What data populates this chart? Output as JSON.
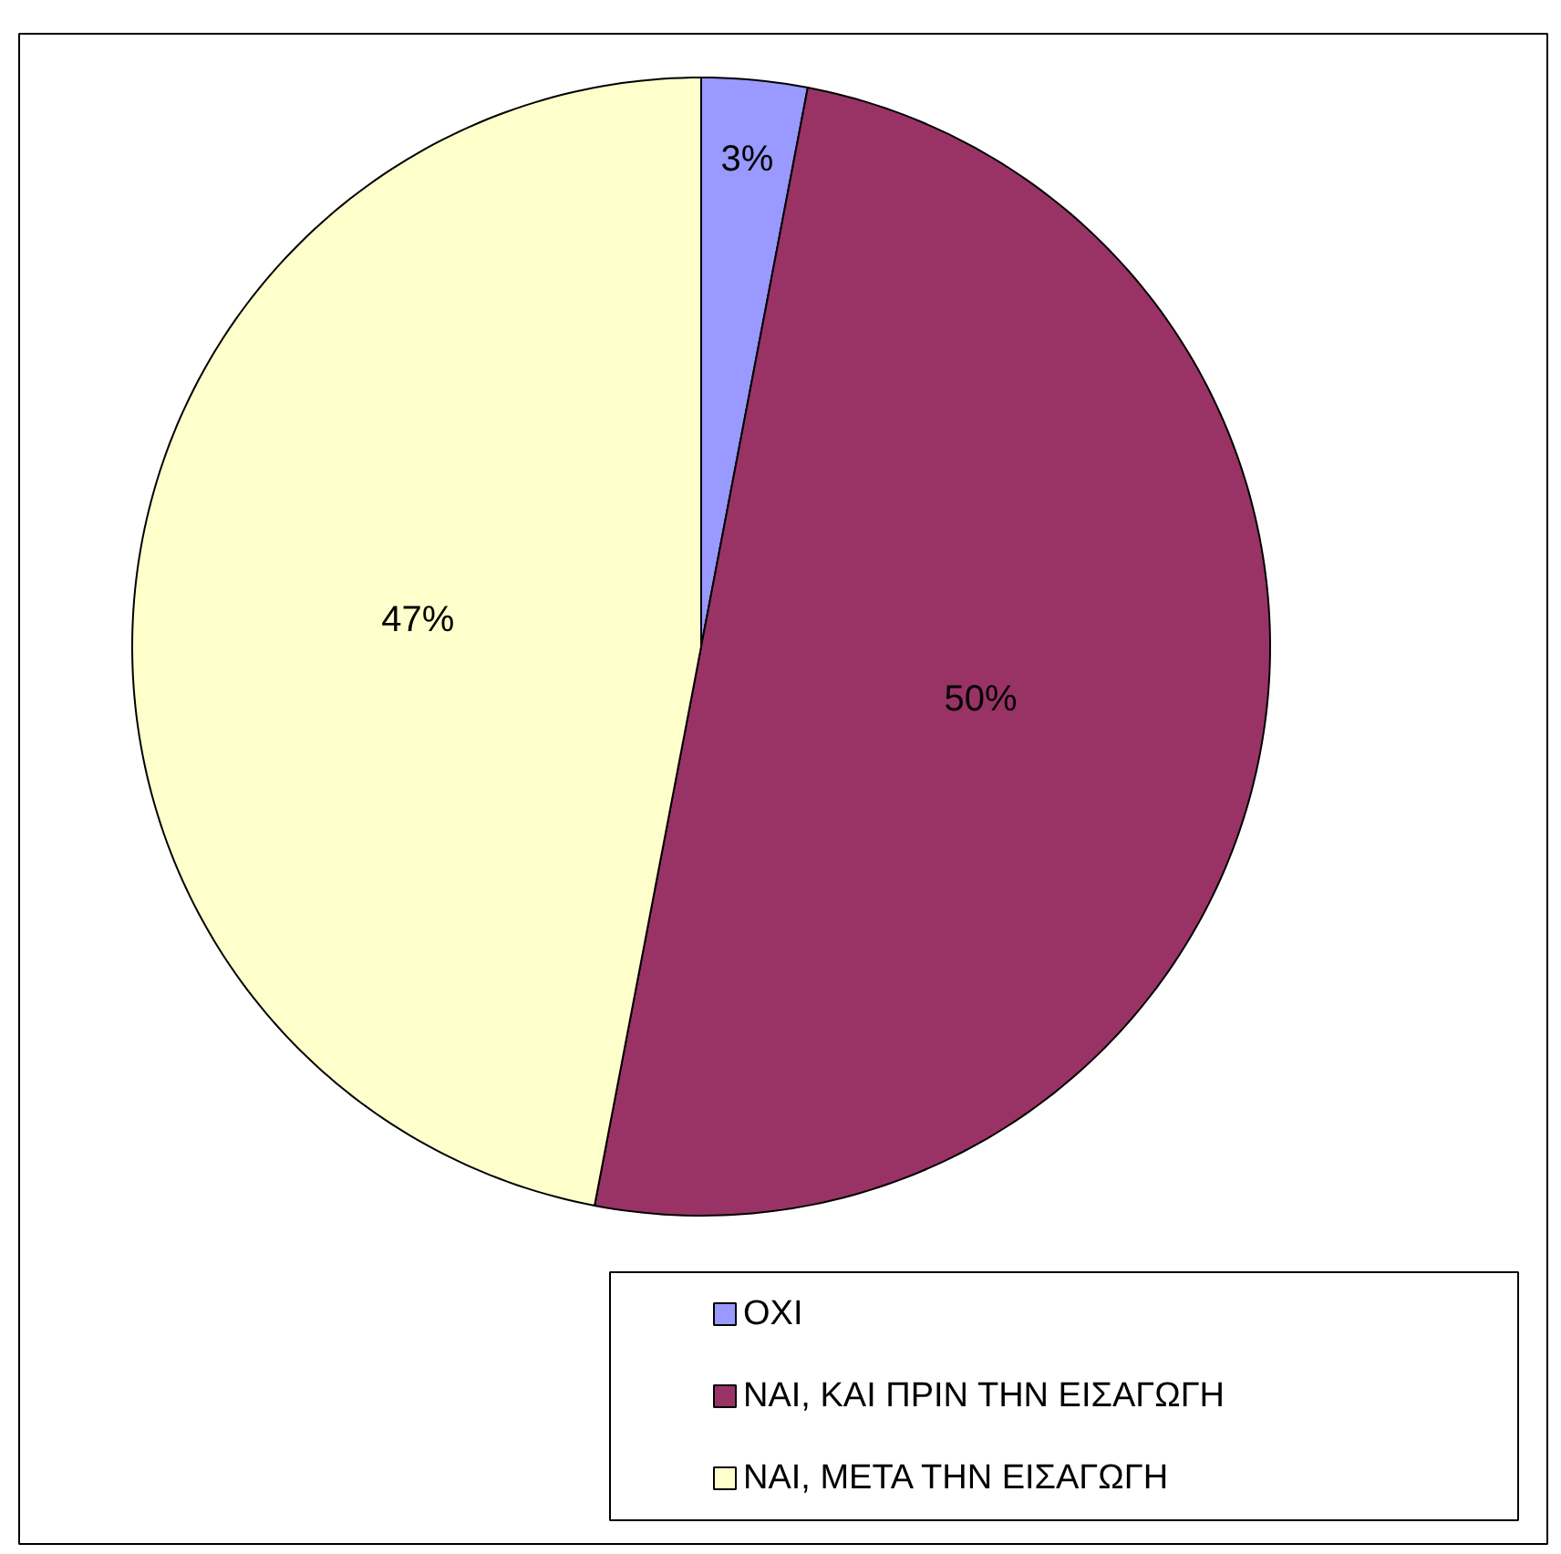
{
  "chart_data": {
    "type": "pie",
    "categories": [
      "ΟΧΙ",
      "ΝΑΙ, ΚΑΙ ΠΡΙΝ ΤΗΝ ΕΙΣΑΓΩΓΗ",
      "ΝΑΙ, ΜΕΤΑ ΤΗΝ ΕΙΣΑΓΩΓΗ"
    ],
    "values": [
      3,
      50,
      47
    ],
    "colors": [
      "#9999ff",
      "#993366",
      "#ffffcc"
    ],
    "value_labels": [
      "3%",
      "50%",
      "47%"
    ],
    "legend": "bottom right"
  }
}
